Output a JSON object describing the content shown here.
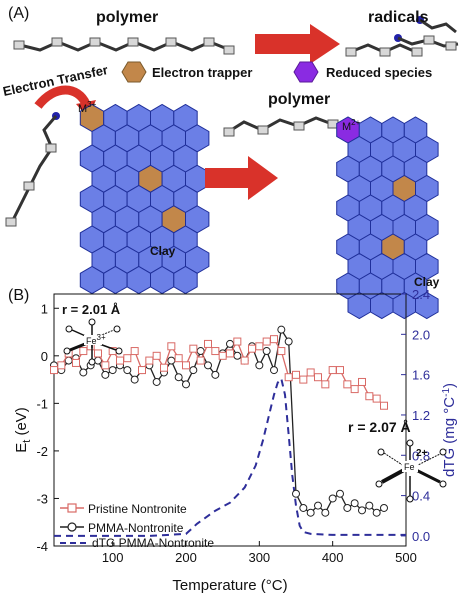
{
  "panel_a": {
    "panel_label": "(A)",
    "polymer_label_top": "polymer",
    "radicals_label": "radicals",
    "electron_transfer_label": "Electron Transfer",
    "electron_trapper_label": "Electron trapper",
    "reduced_species_label": "Reduced species",
    "polymer_label_mid": "polymer",
    "metal_left": "M",
    "metal_left_sup": "3+",
    "metal_right": "M",
    "metal_right_sup": "2+",
    "clay_label_left": "Clay",
    "clay_label_right": "Clay",
    "colors": {
      "hex": "#6b7fe6",
      "trapper": "#c2874a",
      "reduced": "#8a2be2",
      "arrow": "#d9322a"
    }
  },
  "panel_b": {
    "panel_label": "(B)",
    "r_label_left": "r = 2.01 Å",
    "r_label_right": "r = 2.07 Å",
    "fe_label": "Fe",
    "fe_charge_left": "3+",
    "fe_charge_right": "2+"
  },
  "chart_data": {
    "type": "line",
    "xlabel": "Temperature (°C)",
    "ylabel_left": "E",
    "ylabel_left_sub": "t",
    "ylabel_left_unit": "(eV)",
    "ylabel_right": "dTG (mg °C",
    "ylabel_right_sup": "-1",
    "ylabel_right_tail": ")",
    "xlim": [
      20,
      500
    ],
    "ylim_left": [
      -4,
      1.3
    ],
    "ylim_right": [
      -0.1,
      2.4
    ],
    "x_ticks": [
      100,
      200,
      300,
      400,
      500
    ],
    "y_left_ticks": [
      -4,
      -3,
      -2,
      -1,
      0,
      1
    ],
    "y_right_ticks": [
      0.0,
      0.4,
      0.8,
      1.2,
      1.6,
      2.0,
      2.4
    ],
    "x_tick_labels": [
      "100",
      "200",
      "300",
      "400",
      "500"
    ],
    "y_left_tick_labels": [
      "-4",
      "-3",
      "-2",
      "-1",
      "0",
      "1"
    ],
    "y_right_tick_labels": [
      "0.0",
      "0.4",
      "0.8",
      "1.2",
      "1.6",
      "2.0",
      "2.4"
    ],
    "legend": [
      "Pristine Nontronite",
      "PMMA-Nontronite",
      "dTG PMMA-Nontronite"
    ],
    "series": [
      {
        "name": "Pristine Nontronite",
        "axis": "left",
        "color": "#d96a66",
        "marker": "square",
        "x": [
          20,
          30,
          40,
          50,
          60,
          70,
          80,
          90,
          100,
          110,
          120,
          130,
          140,
          150,
          160,
          170,
          180,
          190,
          200,
          210,
          220,
          230,
          240,
          250,
          260,
          270,
          280,
          290,
          300,
          310,
          320,
          330,
          340,
          350,
          360,
          370,
          380,
          390,
          400,
          410,
          420,
          430,
          440,
          450,
          460,
          470
        ],
        "y": [
          -0.3,
          -0.2,
          0.05,
          -0.15,
          0.1,
          0.2,
          0.05,
          -0.2,
          0.1,
          -0.1,
          -0.05,
          0.1,
          -0.3,
          -0.1,
          0.0,
          -0.25,
          0.2,
          -0.05,
          -0.2,
          0.15,
          -0.1,
          0.25,
          0.1,
          0.0,
          0.05,
          0.3,
          -0.1,
          0.15,
          0.2,
          0.3,
          0.35,
          0.1,
          -0.45,
          -0.4,
          -0.5,
          -0.35,
          -0.45,
          -0.6,
          -0.3,
          -0.3,
          -0.6,
          -0.7,
          -0.55,
          -0.85,
          -0.9,
          -1.05
        ]
      },
      {
        "name": "PMMA-Nontronite",
        "axis": "left",
        "color": "#222222",
        "marker": "circle",
        "x": [
          20,
          30,
          40,
          50,
          60,
          70,
          80,
          90,
          100,
          110,
          120,
          130,
          140,
          150,
          160,
          170,
          180,
          190,
          200,
          210,
          220,
          230,
          240,
          250,
          260,
          270,
          280,
          290,
          300,
          310,
          320,
          330,
          340,
          350,
          360,
          370,
          380,
          390,
          400,
          410,
          420,
          430,
          440,
          450,
          460,
          470
        ],
        "y": [
          -0.2,
          -0.3,
          -0.1,
          -0.05,
          -0.35,
          -0.2,
          -0.1,
          -0.4,
          -0.3,
          -0.2,
          -0.3,
          -0.5,
          -0.3,
          -0.2,
          -0.55,
          -0.35,
          -0.1,
          -0.45,
          -0.6,
          -0.3,
          0.1,
          -0.2,
          -0.4,
          0.05,
          0.25,
          0.0,
          -0.1,
          0.2,
          -0.2,
          0.1,
          -0.3,
          0.55,
          0.3,
          -2.9,
          -3.2,
          -3.3,
          -3.15,
          -3.3,
          -3.0,
          -2.9,
          -3.2,
          -3.1,
          -3.25,
          -3.15,
          -3.3,
          -3.2
        ]
      },
      {
        "name": "dTG PMMA-Nontronite",
        "axis": "right",
        "color": "#2e2e9a",
        "dash": true,
        "x": [
          20,
          100,
          150,
          200,
          215,
          240,
          260,
          280,
          295,
          305,
          315,
          320,
          325,
          330,
          335,
          340,
          345,
          350,
          355,
          360,
          370,
          400,
          500
        ],
        "y": [
          0.0,
          0.0,
          0.0,
          0.02,
          0.12,
          0.25,
          0.33,
          0.48,
          0.7,
          0.95,
          1.25,
          1.4,
          1.52,
          1.56,
          1.4,
          1.0,
          0.6,
          0.3,
          0.1,
          0.04,
          0.02,
          0.01,
          0.01
        ]
      }
    ]
  }
}
